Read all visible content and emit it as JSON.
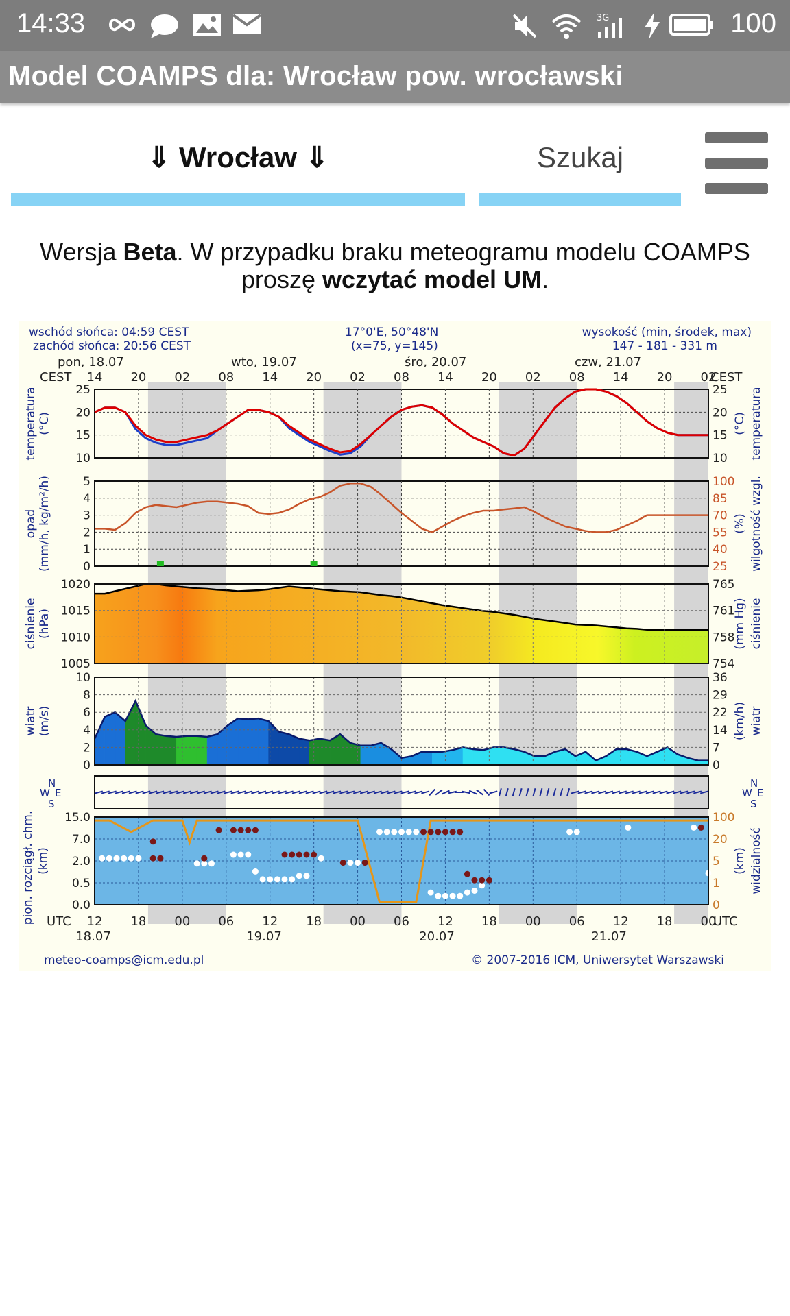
{
  "status_bar": {
    "time": "14:33",
    "battery": "100",
    "icons": [
      "infinity-icon",
      "chat-bubble-icon",
      "image-icon",
      "mail-icon",
      "mute-icon",
      "wifi-icon",
      "signal-3g-icon",
      "charging-icon",
      "battery-icon"
    ]
  },
  "app": {
    "title": "Model COAMPS dla: Wrocław  pow. wrocławski"
  },
  "nav": {
    "city_label": "Wrocław",
    "arrow": "⇓",
    "search_label": "Szukaj"
  },
  "info": {
    "part1": "Wersja ",
    "bold1": "Beta",
    "part2": ". W przypadku braku meteogramu modelu COAMPS proszę ",
    "bold2": "wczytać model UM",
    "part3": "."
  },
  "colors": {
    "accent": "#87d3f5",
    "status_bar": "#7d7d7d",
    "title_bar": "#8c8c8c",
    "temp_red": "#dd0000",
    "temp_blue": "#1d3fc8",
    "humidity": "#c8552a",
    "pressure_line": "#000000",
    "visibility_orange": "#e5961a"
  },
  "meteogram": {
    "header_left_1": "wschód słońca: 04:59 CEST",
    "header_left_2": "zachód słońca: 20:56 CEST",
    "header_mid_1": "17°0'E, 50°48'N",
    "header_mid_2": "(x=75,  y=145)",
    "header_right_1": "wysokość (min, środek, max)",
    "header_right_2": "147 - 181 - 331 m",
    "days_top": [
      "pon, 18.07",
      "wto, 19.07",
      "śro, 20.07",
      "czw, 21.07"
    ],
    "cest_left": "CEST",
    "cest_right": "CEST",
    "hours_cest": [
      "14",
      "20",
      "02",
      "08",
      "14",
      "20",
      "02",
      "08",
      "14",
      "20",
      "02",
      "08",
      "14",
      "20",
      "02"
    ],
    "hours_utc": [
      "12",
      "18",
      "00",
      "06",
      "12",
      "18",
      "00",
      "06",
      "12",
      "18",
      "00",
      "06",
      "12",
      "18",
      "00"
    ],
    "utc_left": "UTC",
    "utc_right": "UTC",
    "dates_bottom": [
      "18.07",
      "19.07",
      "20.07",
      "21.07"
    ],
    "footer_left": "meteo-coamps@icm.edu.pl",
    "footer_right": "© 2007-2016 ICM, Uniwersytet Warszawski",
    "panels": {
      "temperature": {
        "label_left": "temperatura",
        "unit_left": "(°C)",
        "label_right": "temperatura",
        "unit_right": "(°C)",
        "ticks": [
          "25",
          "20",
          "15",
          "10"
        ]
      },
      "precip": {
        "label_left": "opad",
        "unit_left": "(mm/h, kg/m²/h)",
        "ticks_left": [
          "5",
          "4",
          "3",
          "2",
          "1",
          "0"
        ],
        "label_right": "wilgotność wzgl.",
        "unit_right": "(%)",
        "ticks_right": [
          "100",
          "85",
          "70",
          "55",
          "40",
          "25"
        ]
      },
      "pressure": {
        "label_left": "ciśnienie",
        "unit_left": "(hPa)",
        "ticks_left": [
          "1020",
          "1015",
          "1010",
          "1005"
        ],
        "label_right": "ciśnienie",
        "unit_right": "(mm Hg)",
        "ticks_right": [
          "765",
          "761",
          "758",
          "754"
        ]
      },
      "wind": {
        "label_left": "wiatr",
        "unit_left": "(m/s)",
        "ticks_left": [
          "10",
          "8",
          "6",
          "4",
          "2",
          "0"
        ],
        "label_right": "wiatr",
        "unit_right": "(km/h)",
        "ticks_right": [
          "36",
          "29",
          "22",
          "14",
          "7",
          "0"
        ]
      },
      "clouds": {
        "label_left": "pion. rozciągł. chm.",
        "unit_left": "(km)",
        "ticks_left": [
          "15.0",
          "7.0",
          "2.0",
          "0.5",
          "0.0"
        ],
        "label_right": "widzialność",
        "unit_right": "(km)",
        "ticks_right": [
          "100",
          "20",
          "5",
          "1",
          "0"
        ]
      }
    }
  },
  "chart_data": {
    "type": "line",
    "x": [
      0,
      6,
      12,
      18,
      24,
      30,
      36,
      42,
      48,
      54,
      60,
      66,
      72,
      78,
      84,
      90,
      96,
      102,
      108,
      114,
      120,
      126,
      132,
      138,
      144,
      150,
      156,
      162,
      168,
      174,
      180,
      186,
      192,
      198,
      204,
      210,
      216,
      222,
      228,
      234,
      240,
      246,
      252,
      258,
      264,
      270,
      276,
      282,
      288,
      294,
      300,
      306,
      312,
      318,
      324,
      330,
      336,
      342,
      348,
      354,
      360
    ],
    "series": [
      {
        "panel": "temperature",
        "values": [
          20,
          21,
          21,
          20,
          17,
          15,
          14,
          13.5,
          13.5,
          14,
          14.5,
          15,
          16,
          17.5,
          19,
          20.5,
          20.5,
          20,
          19,
          17,
          15.5,
          14,
          13,
          12,
          11.2,
          11.5,
          13,
          15,
          17,
          19,
          20.5,
          21.2,
          21.5,
          21,
          19.5,
          17.5,
          16,
          14.5,
          13.5,
          12.5,
          11,
          10.5,
          12,
          15,
          18,
          21,
          23,
          24.5,
          25,
          25,
          24.5,
          23.5,
          22,
          20,
          18,
          16.5,
          15.5,
          15,
          15,
          15,
          15
        ]
      },
      {
        "panel": "humidity",
        "values": [
          58,
          58,
          57,
          63,
          72,
          77,
          79,
          78,
          77,
          79,
          81,
          82,
          82,
          81,
          80,
          78,
          72,
          71,
          72,
          75,
          80,
          84,
          86,
          90,
          96,
          98,
          98,
          95,
          88,
          80,
          72,
          65,
          58,
          55,
          60,
          65,
          69,
          72,
          74,
          74,
          75,
          76,
          77,
          73,
          68,
          64,
          60,
          58,
          56,
          55,
          55,
          57,
          61,
          65,
          70,
          70,
          70,
          70,
          70,
          70,
          70
        ]
      },
      {
        "panel": "pressure",
        "values": [
          1019.5,
          1019.5,
          1020,
          1020.5,
          1021,
          1021.5,
          1021.5,
          1021.2,
          1021,
          1020.8,
          1020.6,
          1020.5,
          1020.3,
          1020.2,
          1020,
          1020.1,
          1020.2,
          1020.4,
          1020.7,
          1021,
          1020.8,
          1020.6,
          1020.4,
          1020.2,
          1020,
          1019.9,
          1019.8,
          1019.5,
          1019.2,
          1019,
          1018.7,
          1018.3,
          1017.9,
          1017.5,
          1017.1,
          1016.8,
          1016.5,
          1016.2,
          1015.9,
          1015.7,
          1015.4,
          1015.1,
          1014.7,
          1014.3,
          1014,
          1013.7,
          1013.4,
          1013.1,
          1013,
          1012.9,
          1012.7,
          1012.5,
          1012.3,
          1012.2,
          1012,
          1012,
          1012,
          1012,
          1012,
          1012,
          1012
        ]
      },
      {
        "panel": "wind",
        "values": [
          3,
          5.5,
          6,
          5,
          7.3,
          4.5,
          3.5,
          3.3,
          3.2,
          3.3,
          3.3,
          3.2,
          3.5,
          4.5,
          5.3,
          5.2,
          5.3,
          5,
          3.8,
          3.5,
          3,
          2.8,
          3,
          2.8,
          3.5,
          2.5,
          2.2,
          2.2,
          2.5,
          1.8,
          0.8,
          1,
          1.5,
          1.5,
          1.5,
          1.7,
          2,
          1.8,
          1.7,
          2,
          2,
          1.8,
          1.5,
          1,
          1,
          1.5,
          1.8,
          1,
          1.5,
          0.5,
          1,
          1.8,
          1.8,
          1.5,
          1,
          1.5,
          2,
          1.2,
          0.8,
          0.5,
          0.5
        ]
      }
    ],
    "precip_events": [
      {
        "x": 9,
        "value": 0.3
      },
      {
        "x": 30,
        "value": 0.3
      }
    ]
  }
}
